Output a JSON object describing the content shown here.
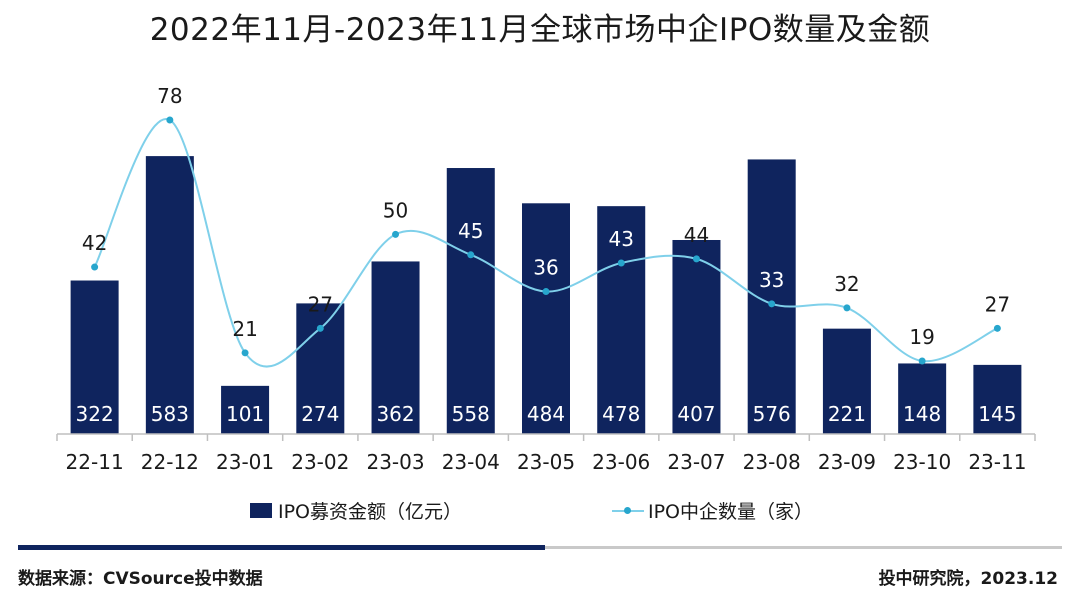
{
  "title": "2022年11月-2023年11月全球市场中企IPO数量及金额",
  "legend": {
    "bar_label": "IPO募资金额（亿元）",
    "line_label": "IPO中企数量（家）"
  },
  "footer": {
    "source": "数据来源：CVSource投中数据",
    "credit": "投中研究院，2023.12"
  },
  "colors": {
    "bar": "#0f245e",
    "line": "#7fd0ea",
    "marker": "#27a6cd",
    "axis": "#bfbfbf"
  },
  "chart_data": {
    "type": "bar",
    "title": "2022年11月-2023年11月全球市场中企IPO数量及金额",
    "categories": [
      "22-11",
      "22-12",
      "23-01",
      "23-02",
      "23-03",
      "23-04",
      "23-05",
      "23-06",
      "23-07",
      "23-08",
      "23-09",
      "23-10",
      "23-11"
    ],
    "series": [
      {
        "name": "IPO募资金额（亿元）",
        "type": "bar",
        "values": [
          322,
          583,
          101,
          274,
          362,
          558,
          484,
          478,
          407,
          576,
          221,
          148,
          145
        ]
      },
      {
        "name": "IPO中企数量（家）",
        "type": "line",
        "smooth": true,
        "values": [
          42,
          78,
          21,
          27,
          50,
          45,
          36,
          43,
          44,
          33,
          32,
          19,
          27
        ]
      }
    ],
    "legend_position": "bottom",
    "grid": false
  }
}
